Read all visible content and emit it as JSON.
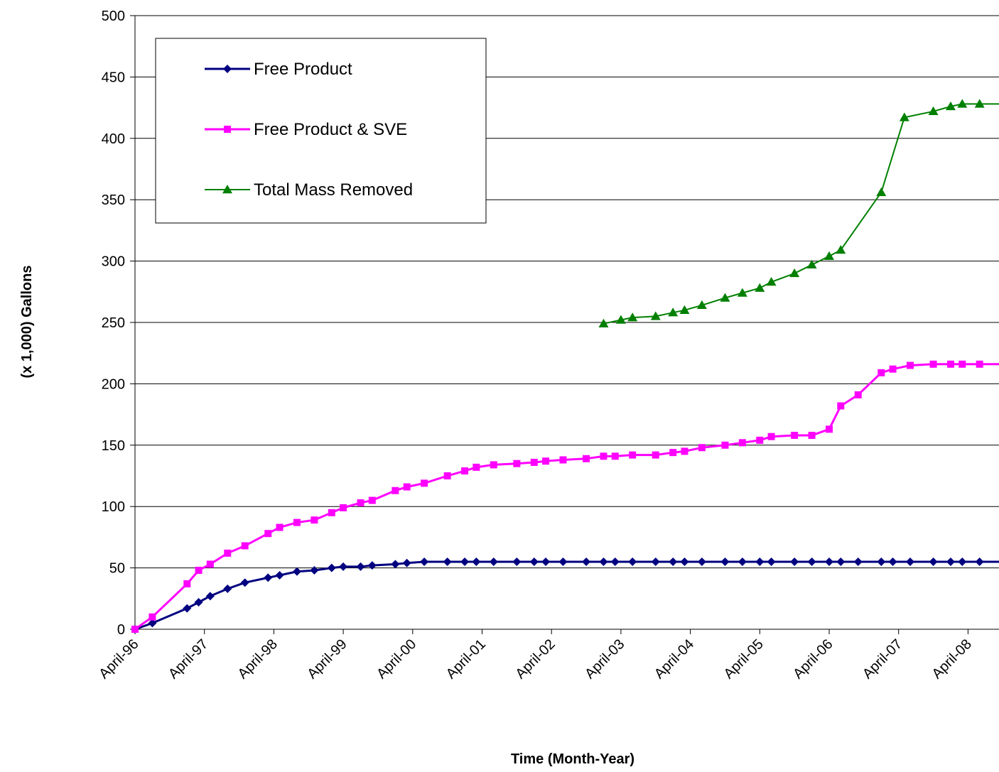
{
  "chart_data": {
    "type": "line",
    "title": "",
    "xlabel": "Time (Month-Year)",
    "ylabel": "(x 1,000) Gallons",
    "ylim": [
      0,
      500
    ],
    "yticks": [
      0,
      50,
      100,
      150,
      200,
      250,
      300,
      350,
      400,
      450,
      500
    ],
    "xlim": [
      "1996-04",
      "2008-10"
    ],
    "xtick_labels": [
      "April-96",
      "April-97",
      "April-98",
      "April-99",
      "April-00",
      "April-01",
      "April-02",
      "April-03",
      "April-04",
      "April-05",
      "April-06",
      "April-07",
      "April-08"
    ],
    "grid": "horizontal",
    "legend_position": "top-left",
    "series": [
      {
        "name": "Free Product",
        "color": "#000080",
        "marker": "diamond",
        "x": [
          "1996-04",
          "1996-07",
          "1997-01",
          "1997-03",
          "1997-05",
          "1997-08",
          "1997-11",
          "1998-03",
          "1998-05",
          "1998-08",
          "1998-11",
          "1999-02",
          "1999-04",
          "1999-07",
          "1999-09",
          "2000-01",
          "2000-03",
          "2000-06",
          "2000-10",
          "2001-01",
          "2001-03",
          "2001-06",
          "2001-10",
          "2002-01",
          "2002-03",
          "2002-06",
          "2002-10",
          "2003-01",
          "2003-03",
          "2003-06",
          "2003-10",
          "2004-01",
          "2004-03",
          "2004-06",
          "2004-10",
          "2005-01",
          "2005-04",
          "2005-06",
          "2005-10",
          "2006-01",
          "2006-04",
          "2006-06",
          "2006-09",
          "2007-01",
          "2007-03",
          "2007-06",
          "2007-10",
          "2008-01",
          "2008-03",
          "2008-06",
          "2008-10"
        ],
        "y": [
          0,
          5,
          17,
          22,
          27,
          33,
          38,
          42,
          44,
          47,
          48,
          50,
          51,
          51,
          52,
          53,
          54,
          55,
          55,
          55,
          55,
          55,
          55,
          55,
          55,
          55,
          55,
          55,
          55,
          55,
          55,
          55,
          55,
          55,
          55,
          55,
          55,
          55,
          55,
          55,
          55,
          55,
          55,
          55,
          55,
          55,
          55,
          55,
          55,
          55,
          55
        ]
      },
      {
        "name": "Free Product & SVE",
        "color": "#FF00FF",
        "marker": "square",
        "x": [
          "1996-04",
          "1996-07",
          "1997-01",
          "1997-03",
          "1997-05",
          "1997-08",
          "1997-11",
          "1998-03",
          "1998-05",
          "1998-08",
          "1998-11",
          "1999-02",
          "1999-04",
          "1999-07",
          "1999-09",
          "2000-01",
          "2000-03",
          "2000-06",
          "2000-10",
          "2001-01",
          "2001-03",
          "2001-06",
          "2001-10",
          "2002-01",
          "2002-03",
          "2002-06",
          "2002-10",
          "2003-01",
          "2003-03",
          "2003-06",
          "2003-10",
          "2004-01",
          "2004-03",
          "2004-06",
          "2004-10",
          "2005-01",
          "2005-04",
          "2005-06",
          "2005-10",
          "2006-01",
          "2006-04",
          "2006-06",
          "2006-09",
          "2007-01",
          "2007-03",
          "2007-06",
          "2007-10",
          "2008-01",
          "2008-03",
          "2008-06",
          "2008-10"
        ],
        "y": [
          0,
          10,
          37,
          48,
          53,
          62,
          68,
          78,
          83,
          87,
          89,
          95,
          99,
          103,
          105,
          113,
          116,
          119,
          125,
          129,
          132,
          134,
          135,
          136,
          137,
          138,
          139,
          141,
          141,
          142,
          142,
          144,
          145,
          148,
          150,
          152,
          154,
          157,
          158,
          158,
          163,
          182,
          191,
          209,
          212,
          215,
          216,
          216,
          216,
          216,
          216
        ]
      },
      {
        "name": "Total Mass Removed",
        "color": "#008000",
        "marker": "triangle",
        "x": [
          "2003-01",
          "2003-04",
          "2003-06",
          "2003-10",
          "2004-01",
          "2004-03",
          "2004-06",
          "2004-10",
          "2005-01",
          "2005-04",
          "2005-06",
          "2005-10",
          "2006-01",
          "2006-04",
          "2006-06",
          "2007-01",
          "2007-05",
          "2007-10",
          "2008-01",
          "2008-03",
          "2008-06",
          "2008-10"
        ],
        "y": [
          249,
          252,
          254,
          255,
          258,
          260,
          264,
          270,
          274,
          278,
          283,
          290,
          297,
          304,
          309,
          356,
          417,
          422,
          426,
          428,
          428,
          428
        ]
      }
    ]
  }
}
